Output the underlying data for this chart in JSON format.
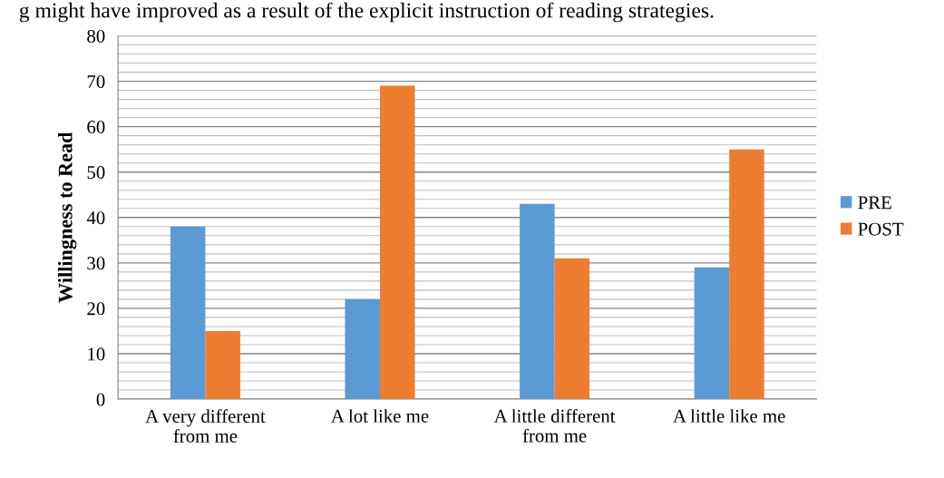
{
  "chart_data": {
    "type": "bar",
    "categories": [
      "A very different\nfrom me",
      "A lot like me",
      "A little different\nfrom me",
      "A little like me"
    ],
    "series": [
      {
        "name": "PRE",
        "color": "#5b9bd5",
        "values": [
          38,
          22,
          43,
          29
        ]
      },
      {
        "name": "POST",
        "color": "#ed7d31",
        "values": [
          15,
          69,
          31,
          55
        ]
      }
    ],
    "ylabel": "Willingness to Read",
    "ylim": [
      0,
      80
    ],
    "yticks": [
      0,
      10,
      20,
      30,
      40,
      50,
      60,
      70,
      80
    ],
    "grid": "y",
    "legend": "right",
    "annotations": [
      "g might have improved as a result of the explicit instruction of reading strategies."
    ]
  }
}
